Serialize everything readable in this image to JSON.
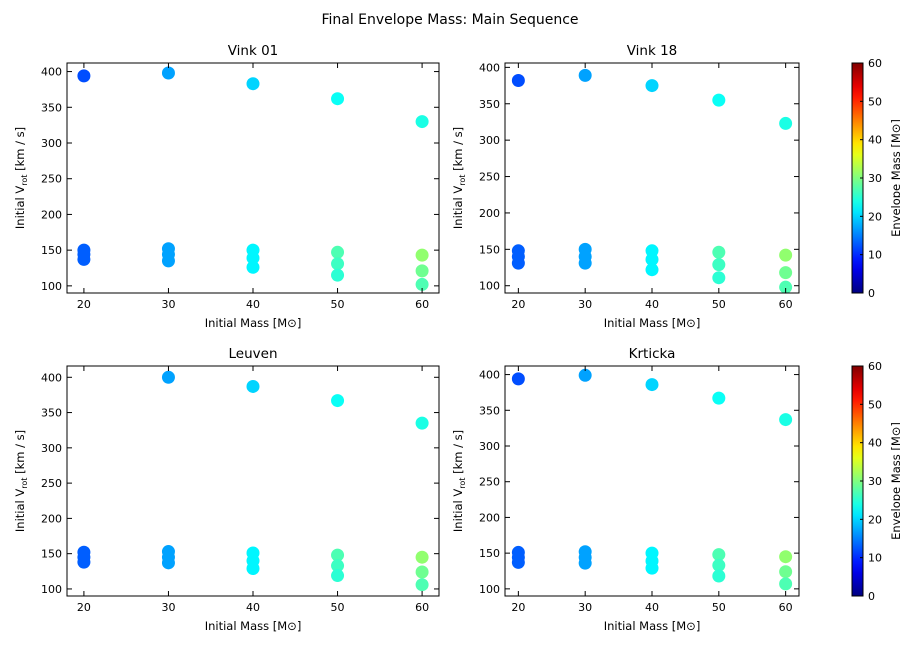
{
  "figure": {
    "title": "Final Envelope Mass: Main Sequence"
  },
  "colorbar": {
    "label": "Envelope Mass [M⊙]",
    "range": [
      0,
      60
    ],
    "ticks": [
      "0",
      "10",
      "20",
      "30",
      "40",
      "50",
      "60"
    ],
    "colormap": "jet"
  },
  "chart_data": [
    {
      "type": "scatter",
      "title": "Vink 01",
      "xlabel": "Initial Mass [M⊙]",
      "ylabel": "Initial V_rot [km / s]",
      "xlim": [
        18,
        62
      ],
      "ylim": [
        90,
        412
      ],
      "xticks": [
        20,
        30,
        40,
        50,
        60
      ],
      "yticks": [
        100,
        150,
        200,
        250,
        300,
        350,
        400
      ],
      "points": [
        {
          "x": 20,
          "y": 394,
          "env": 12
        },
        {
          "x": 20,
          "y": 150,
          "env": 13
        },
        {
          "x": 20,
          "y": 144,
          "env": 13
        },
        {
          "x": 20,
          "y": 137,
          "env": 13
        },
        {
          "x": 30,
          "y": 398,
          "env": 17
        },
        {
          "x": 30,
          "y": 152,
          "env": 17
        },
        {
          "x": 30,
          "y": 144,
          "env": 17
        },
        {
          "x": 30,
          "y": 135,
          "env": 17
        },
        {
          "x": 40,
          "y": 383,
          "env": 20
        },
        {
          "x": 40,
          "y": 150,
          "env": 22
        },
        {
          "x": 40,
          "y": 139,
          "env": 22
        },
        {
          "x": 40,
          "y": 126,
          "env": 22
        },
        {
          "x": 50,
          "y": 362,
          "env": 23
        },
        {
          "x": 50,
          "y": 147,
          "env": 27
        },
        {
          "x": 50,
          "y": 131,
          "env": 26
        },
        {
          "x": 50,
          "y": 115,
          "env": 25
        },
        {
          "x": 60,
          "y": 330,
          "env": 24
        },
        {
          "x": 60,
          "y": 143,
          "env": 31
        },
        {
          "x": 60,
          "y": 121,
          "env": 29
        },
        {
          "x": 60,
          "y": 102,
          "env": 27
        }
      ]
    },
    {
      "type": "scatter",
      "title": "Vink 18",
      "xlabel": "Initial Mass [M⊙]",
      "ylabel": "Initial V_rot [km / s]",
      "xlim": [
        18,
        62
      ],
      "ylim": [
        90,
        406
      ],
      "xticks": [
        20,
        30,
        40,
        50,
        60
      ],
      "yticks": [
        100,
        150,
        200,
        250,
        300,
        350,
        400
      ],
      "points": [
        {
          "x": 20,
          "y": 382,
          "env": 12
        },
        {
          "x": 20,
          "y": 148,
          "env": 13
        },
        {
          "x": 20,
          "y": 140,
          "env": 13
        },
        {
          "x": 20,
          "y": 131,
          "env": 13
        },
        {
          "x": 30,
          "y": 389,
          "env": 17
        },
        {
          "x": 30,
          "y": 150,
          "env": 17
        },
        {
          "x": 30,
          "y": 140,
          "env": 17
        },
        {
          "x": 30,
          "y": 131,
          "env": 17
        },
        {
          "x": 40,
          "y": 375,
          "env": 20
        },
        {
          "x": 40,
          "y": 148,
          "env": 22
        },
        {
          "x": 40,
          "y": 136,
          "env": 22
        },
        {
          "x": 40,
          "y": 122,
          "env": 22
        },
        {
          "x": 50,
          "y": 355,
          "env": 23
        },
        {
          "x": 50,
          "y": 146,
          "env": 27
        },
        {
          "x": 50,
          "y": 129,
          "env": 26
        },
        {
          "x": 50,
          "y": 111,
          "env": 25
        },
        {
          "x": 60,
          "y": 323,
          "env": 24
        },
        {
          "x": 60,
          "y": 142,
          "env": 31
        },
        {
          "x": 60,
          "y": 118,
          "env": 29
        },
        {
          "x": 60,
          "y": 98,
          "env": 27
        }
      ]
    },
    {
      "type": "scatter",
      "title": "Leuven",
      "xlabel": "Initial Mass [M⊙]",
      "ylabel": "Initial V_rot [km / s]",
      "xlim": [
        18,
        62
      ],
      "ylim": [
        90,
        416
      ],
      "xticks": [
        20,
        30,
        40,
        50,
        60
      ],
      "yticks": [
        100,
        150,
        200,
        250,
        300,
        350,
        400
      ],
      "points": [
        {
          "x": 20,
          "y": 152,
          "env": 13
        },
        {
          "x": 20,
          "y": 145,
          "env": 13
        },
        {
          "x": 20,
          "y": 138,
          "env": 13
        },
        {
          "x": 30,
          "y": 400,
          "env": 17
        },
        {
          "x": 30,
          "y": 153,
          "env": 17
        },
        {
          "x": 30,
          "y": 145,
          "env": 17
        },
        {
          "x": 30,
          "y": 137,
          "env": 17
        },
        {
          "x": 40,
          "y": 387,
          "env": 20
        },
        {
          "x": 40,
          "y": 151,
          "env": 22
        },
        {
          "x": 40,
          "y": 140,
          "env": 22
        },
        {
          "x": 40,
          "y": 129,
          "env": 22
        },
        {
          "x": 50,
          "y": 367,
          "env": 23
        },
        {
          "x": 50,
          "y": 148,
          "env": 27
        },
        {
          "x": 50,
          "y": 133,
          "env": 26
        },
        {
          "x": 50,
          "y": 119,
          "env": 25
        },
        {
          "x": 60,
          "y": 335,
          "env": 24
        },
        {
          "x": 60,
          "y": 145,
          "env": 31
        },
        {
          "x": 60,
          "y": 124,
          "env": 29
        },
        {
          "x": 60,
          "y": 106,
          "env": 27
        }
      ]
    },
    {
      "type": "scatter",
      "title": "Krticka",
      "xlabel": "Initial Mass [M⊙]",
      "ylabel": "Initial V_rot [km / s]",
      "xlim": [
        18,
        62
      ],
      "ylim": [
        90,
        412
      ],
      "xticks": [
        20,
        30,
        40,
        50,
        60
      ],
      "yticks": [
        100,
        150,
        200,
        250,
        300,
        350,
        400
      ],
      "points": [
        {
          "x": 20,
          "y": 394,
          "env": 12
        },
        {
          "x": 20,
          "y": 151,
          "env": 13
        },
        {
          "x": 20,
          "y": 144,
          "env": 13
        },
        {
          "x": 20,
          "y": 137,
          "env": 13
        },
        {
          "x": 30,
          "y": 399,
          "env": 17
        },
        {
          "x": 30,
          "y": 152,
          "env": 17
        },
        {
          "x": 30,
          "y": 144,
          "env": 17
        },
        {
          "x": 30,
          "y": 136,
          "env": 17
        },
        {
          "x": 40,
          "y": 386,
          "env": 20
        },
        {
          "x": 40,
          "y": 150,
          "env": 22
        },
        {
          "x": 40,
          "y": 139,
          "env": 22
        },
        {
          "x": 40,
          "y": 129,
          "env": 22
        },
        {
          "x": 50,
          "y": 367,
          "env": 23
        },
        {
          "x": 50,
          "y": 148,
          "env": 27
        },
        {
          "x": 50,
          "y": 133,
          "env": 26
        },
        {
          "x": 50,
          "y": 118,
          "env": 25
        },
        {
          "x": 60,
          "y": 337,
          "env": 24
        },
        {
          "x": 60,
          "y": 145,
          "env": 31
        },
        {
          "x": 60,
          "y": 124,
          "env": 29
        },
        {
          "x": 60,
          "y": 107,
          "env": 27
        }
      ]
    }
  ]
}
